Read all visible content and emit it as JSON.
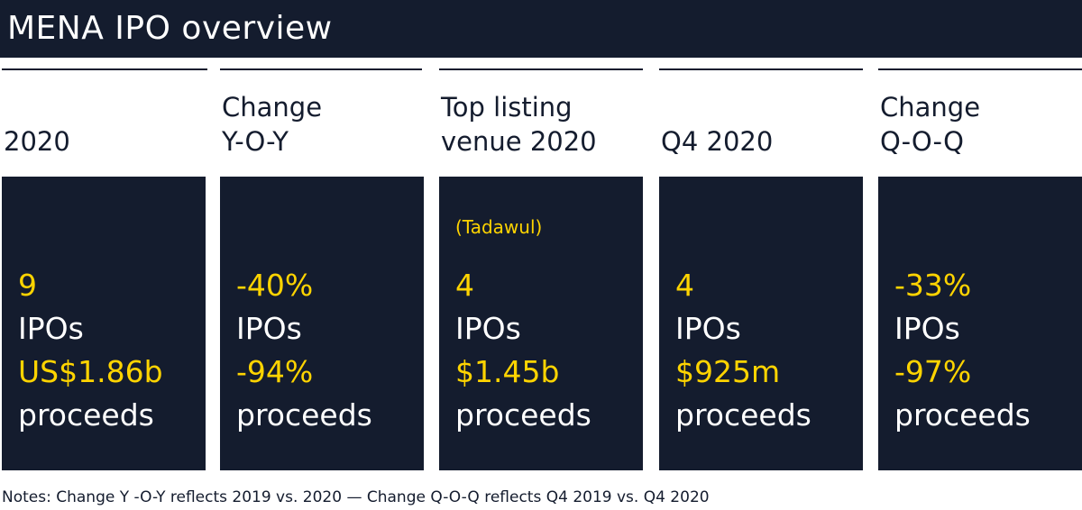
{
  "title": "MENA IPO overview",
  "columns": [
    {
      "header": [
        "2020"
      ],
      "venue": "",
      "stat1_value": "9",
      "stat1_label": "IPOs",
      "stat2_value": "US$1.86b",
      "stat2_label": "proceeds"
    },
    {
      "header": [
        "Change",
        "Y-O-Y"
      ],
      "venue": "",
      "stat1_value": "-40%",
      "stat1_label": "IPOs",
      "stat2_value": "-94%",
      "stat2_label": "proceeds"
    },
    {
      "header": [
        "Top listing",
        "venue 2020"
      ],
      "venue": "(Tadawul)",
      "stat1_value": "4",
      "stat1_label": "IPOs",
      "stat2_value": "$1.45b",
      "stat2_label": "proceeds"
    },
    {
      "header": [
        "Q4 2020"
      ],
      "venue": "",
      "stat1_value": "4",
      "stat1_label": "IPOs",
      "stat2_value": "$925m",
      "stat2_label": "proceeds"
    },
    {
      "header": [
        "Change",
        "Q-O-Q"
      ],
      "venue": "",
      "stat1_value": "-33%",
      "stat1_label": "IPOs",
      "stat2_value": "-97%",
      "stat2_label": "proceeds"
    }
  ],
  "notes": "Notes: Change Y -O-Y reflects 2019 vs. 2020 — Change Q-O-Q reflects Q4 2019 vs. Q4 2020",
  "colors": {
    "navy": "#141c2e",
    "accent": "#ffd400",
    "text_on_dark": "#ffffff"
  }
}
